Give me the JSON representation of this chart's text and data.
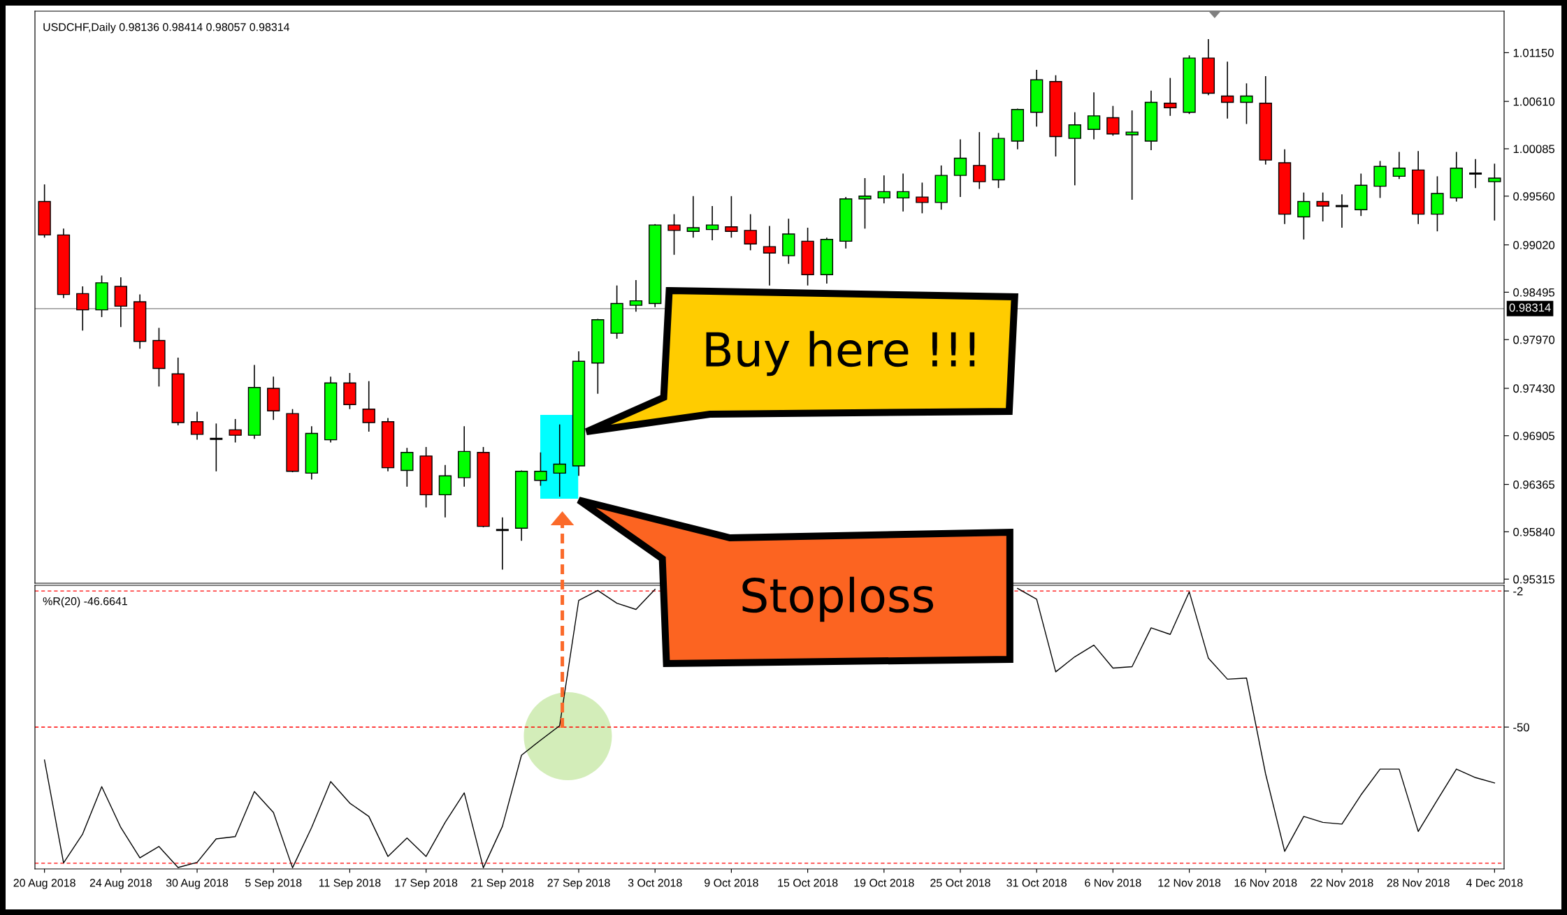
{
  "chart_data": [
    {
      "type": "candlestick",
      "title": "USDCHF,Daily 0.98136 0.98414 0.98057 0.98314",
      "categories": [
        null,
        null,
        null,
        null,
        null,
        null,
        null,
        null,
        null,
        null,
        null,
        null,
        null,
        null,
        null,
        null,
        null,
        null,
        null,
        null,
        null,
        null,
        null,
        null,
        null,
        null,
        null,
        null,
        null,
        null,
        null,
        null,
        null,
        null,
        null,
        null,
        null,
        null,
        null,
        null,
        null,
        null,
        null,
        null,
        null,
        null,
        null,
        null,
        null,
        null,
        null,
        null,
        null,
        null,
        null,
        null,
        null,
        null,
        null,
        null,
        null,
        null,
        null,
        null,
        null,
        null,
        null,
        null,
        null,
        null,
        null,
        null,
        null,
        null,
        null,
        null,
        null
      ],
      "ohlc": [
        [
          0.995,
          0.9969,
          0.991,
          0.9913
        ],
        [
          0.9913,
          0.992,
          0.9843,
          0.9847
        ],
        [
          0.9848,
          0.9856,
          0.9807,
          0.983
        ],
        [
          0.983,
          0.9868,
          0.9822,
          0.986
        ],
        [
          0.9856,
          0.9866,
          0.9811,
          0.9834
        ],
        [
          0.9839,
          0.9847,
          0.9787,
          0.9795
        ],
        [
          0.9796,
          0.981,
          0.9745,
          0.9765
        ],
        [
          0.9759,
          0.9777,
          0.9702,
          0.9705
        ],
        [
          0.9706,
          0.9717,
          0.9686,
          0.9692
        ],
        [
          0.9687,
          0.9704,
          0.9651,
          0.9687
        ],
        [
          0.9697,
          0.9709,
          0.9683,
          0.9691
        ],
        [
          0.9691,
          0.9769,
          0.9687,
          0.9744
        ],
        [
          0.9743,
          0.9756,
          0.9708,
          0.9718
        ],
        [
          0.9715,
          0.972,
          0.965,
          0.9651
        ],
        [
          0.9649,
          0.9701,
          0.9642,
          0.9693
        ],
        [
          0.9686,
          0.9756,
          0.9683,
          0.9749
        ],
        [
          0.9749,
          0.976,
          0.972,
          0.9725
        ],
        [
          0.972,
          0.9751,
          0.9695,
          0.9705
        ],
        [
          0.9706,
          0.971,
          0.9651,
          0.9655
        ],
        [
          0.9652,
          0.9677,
          0.9634,
          0.9672
        ],
        [
          0.9668,
          0.9678,
          0.9611,
          0.9625
        ],
        [
          0.9625,
          0.9658,
          0.96,
          0.9646
        ],
        [
          0.9644,
          0.9701,
          0.9634,
          0.9673
        ],
        [
          0.9672,
          0.9678,
          0.9589,
          0.959
        ],
        [
          0.9586,
          0.96,
          0.9542,
          0.9586
        ],
        [
          0.9588,
          0.9652,
          0.9574,
          0.9651
        ],
        [
          0.9641,
          0.9672,
          0.9635,
          0.9651
        ],
        [
          0.9649,
          0.9703,
          0.9623,
          0.9659
        ],
        [
          0.9657,
          0.9784,
          0.9646,
          0.9773
        ],
        [
          0.9771,
          0.982,
          0.9737,
          0.9819
        ],
        [
          0.9804,
          0.9857,
          0.9798,
          0.9837
        ],
        [
          0.9835,
          0.9863,
          0.9828,
          0.984
        ],
        [
          0.9837,
          0.9925,
          0.9833,
          0.9924
        ],
        [
          0.9924,
          0.9936,
          0.9891,
          0.9918
        ],
        [
          0.9917,
          0.9956,
          0.991,
          0.9921
        ],
        [
          0.9919,
          0.9945,
          0.9907,
          0.9924
        ],
        [
          0.9922,
          0.9956,
          0.991,
          0.9917
        ],
        [
          0.9918,
          0.9936,
          0.9896,
          0.9903
        ],
        [
          0.99,
          0.9923,
          0.9857,
          0.9893
        ],
        [
          0.989,
          0.9931,
          0.9881,
          0.9914
        ],
        [
          0.9906,
          0.9921,
          0.9857,
          0.9869
        ],
        [
          0.9869,
          0.991,
          0.9859,
          0.9908
        ],
        [
          0.9906,
          0.9955,
          0.9898,
          0.9953
        ],
        [
          0.9953,
          0.9976,
          0.992,
          0.9956
        ],
        [
          0.9954,
          0.9979,
          0.9948,
          0.9961
        ],
        [
          0.9954,
          0.9981,
          0.9939,
          0.9961
        ],
        [
          0.9955,
          0.9971,
          0.9937,
          0.9949
        ],
        [
          0.9949,
          0.999,
          0.9941,
          0.9979
        ],
        [
          0.9979,
          1.0019,
          0.9955,
          0.9998
        ],
        [
          0.999,
          1.0027,
          0.9964,
          0.9972
        ],
        [
          0.9974,
          1.0026,
          0.9965,
          1.002
        ],
        [
          1.0017,
          1.0053,
          1.0008,
          1.0052
        ],
        [
          1.0049,
          1.0096,
          1.0033,
          1.0085
        ],
        [
          1.0083,
          1.009,
          1.0,
          1.0022
        ],
        [
          1.002,
          1.0049,
          0.9968,
          1.0035
        ],
        [
          1.003,
          1.0071,
          1.0019,
          1.0045
        ],
        [
          1.0043,
          1.0056,
          1.0023,
          1.0025
        ],
        [
          1.0024,
          1.0051,
          0.9952,
          1.0027
        ],
        [
          1.0017,
          1.0073,
          1.0007,
          1.006
        ],
        [
          1.0059,
          1.0087,
          1.0045,
          1.0054
        ],
        [
          1.0049,
          1.0112,
          1.0047,
          1.0109
        ],
        [
          1.0109,
          1.013,
          1.0068,
          1.007
        ],
        [
          1.0067,
          1.0105,
          1.0042,
          1.006
        ],
        [
          1.006,
          1.0081,
          1.0036,
          1.0067
        ],
        [
          1.0059,
          1.0089,
          0.9991,
          0.9996
        ],
        [
          0.9993,
          1.0008,
          0.9925,
          0.9936
        ],
        [
          0.9933,
          0.996,
          0.9908,
          0.995
        ],
        [
          0.995,
          0.996,
          0.9928,
          0.9945
        ],
        [
          0.9945,
          0.9958,
          0.9921,
          0.9945
        ],
        [
          0.9941,
          0.9981,
          0.9934,
          0.9968
        ],
        [
          0.9967,
          0.9995,
          0.9954,
          0.9989
        ],
        [
          0.9978,
          1.0005,
          0.9975,
          0.9987
        ],
        [
          0.9985,
          1.0006,
          0.9925,
          0.9936
        ],
        [
          0.9936,
          0.9978,
          0.9917,
          0.9959
        ],
        [
          0.9954,
          1.0005,
          0.995,
          0.9987
        ],
        [
          0.9981,
          0.9997,
          0.9965,
          0.9981
        ],
        [
          0.9972,
          0.9992,
          0.9929,
          0.9976
        ]
      ],
      "colors": [
        "#ff0000",
        "#ff0000",
        "#ff0000",
        "#00ff00",
        "#ff0000",
        "#ff0000",
        "#ff0000",
        "#ff0000",
        "#ff0000",
        "#000000",
        "#ff0000",
        "#00ff00",
        "#ff0000",
        "#ff0000",
        "#00ff00",
        "#00ff00",
        "#ff0000",
        "#ff0000",
        "#ff0000",
        "#00ff00",
        "#ff0000",
        "#00ff00",
        "#00ff00",
        "#ff0000",
        "#000000",
        "#00ff00",
        "#00ff00",
        "#00ff00",
        "#00ff00",
        "#00ff00",
        "#00ff00",
        "#00ff00",
        "#00ff00",
        "#ff0000",
        "#00ff00",
        "#00ff00",
        "#ff0000",
        "#ff0000",
        "#ff0000",
        "#00ff00",
        "#ff0000",
        "#00ff00",
        "#00ff00",
        "#00ff00",
        "#00ff00",
        "#00ff00",
        "#ff0000",
        "#00ff00",
        "#00ff00",
        "#ff0000",
        "#00ff00",
        "#00ff00",
        "#00ff00",
        "#ff0000",
        "#00ff00",
        "#00ff00",
        "#ff0000",
        "#00ff00",
        "#00ff00",
        "#ff0000",
        "#00ff00",
        "#ff0000",
        "#ff0000",
        "#00ff00",
        "#ff0000",
        "#ff0000",
        "#00ff00",
        "#ff0000",
        "#000000",
        "#00ff00",
        "#00ff00",
        "#00ff00",
        "#ff0000",
        "#00ff00",
        "#00ff00",
        "#000000",
        "#00ff00"
      ],
      "ylim": [
        0.9527,
        1.0161
      ],
      "yticks": [
        {
          "value": 1.0115,
          "label": "1.01150"
        },
        {
          "value": 1.0061,
          "label": "1.00610"
        },
        1.00085,
        {
          "value": 0.9956,
          "label": "0.99560"
        },
        {
          "value": 0.9902,
          "label": "0.99020"
        },
        0.98495,
        {
          "value": 0.9797,
          "label": "0.97970"
        },
        {
          "value": 0.9743,
          "label": "0.97430"
        },
        0.96905,
        0.96365,
        {
          "value": 0.9584,
          "label": "0.95840"
        },
        0.95315
      ],
      "tick_labels": "y",
      "ref_lines": [
        {
          "axis": "y",
          "value": 0.98314,
          "label": "0.98314",
          "color": "#808080"
        }
      ],
      "annotations": [
        "Buy here !!!",
        "Stoploss"
      ]
    },
    {
      "type": "line",
      "title": "%R(20) -46.6641",
      "categories": [
        "20 Aug 2018",
        null,
        null,
        null,
        "24 Aug 2018",
        null,
        null,
        null,
        "30 Aug 2018",
        null,
        null,
        null,
        "5 Sep 2018",
        null,
        null,
        null,
        "11 Sep 2018",
        null,
        null,
        null,
        "17 Sep 2018",
        null,
        null,
        null,
        "21 Sep 2018",
        null,
        null,
        null,
        "27 Sep 2018",
        null,
        null,
        null,
        "3 Oct 2018",
        null,
        null,
        null,
        "9 Oct 2018",
        null,
        null,
        null,
        "15 Oct 2018",
        null,
        null,
        null,
        "19 Oct 2018",
        null,
        null,
        null,
        "25 Oct 2018",
        null,
        null,
        null,
        "31 Oct 2018",
        null,
        null,
        null,
        "6 Nov 2018",
        null,
        null,
        null,
        "12 Nov 2018",
        null,
        null,
        null,
        "16 Nov 2018",
        null,
        null,
        null,
        "22 Nov 2018",
        null,
        null,
        null,
        "28 Nov 2018",
        null,
        null,
        null,
        "4 Dec 2018"
      ],
      "series": [
        {
          "color": "#000000",
          "values": [
            -61.6,
            -97.9,
            -87.7,
            -71.0,
            -85.4,
            -96.1,
            -92.1,
            -99.5,
            -97.7,
            -89.4,
            -88.6,
            -72.7,
            -80.1,
            -99.6,
            -85.4,
            -69.2,
            -76.8,
            -81.5,
            -95.6,
            -89.1,
            -95.6,
            -83.6,
            -73.2,
            -99.6,
            -85.0,
            -59.9,
            -54.6,
            -49.5,
            -5.3,
            -1.8,
            -6.3,
            -8.5,
            -1.4,
            null,
            null,
            null,
            null,
            null,
            null,
            null,
            null,
            null,
            null,
            null,
            null,
            null,
            null,
            null,
            null,
            null,
            null,
            -1.1,
            -4.9,
            -30.5,
            -25.2,
            -21.1,
            -29.2,
            -28.7,
            -15.0,
            -17.3,
            -2.3,
            -25.7,
            -33.1,
            -32.7,
            -66.5,
            -93.8,
            -81.5,
            -83.6,
            -84.2,
            -73.9,
            -64.8,
            -64.8,
            -86.8,
            -75.7,
            -64.8,
            -67.8,
            -69.7
          ]
        }
      ],
      "ylim": [
        -100,
        0
      ],
      "yticks": [
        -2,
        -50
      ],
      "ref_lines": [
        {
          "axis": "y",
          "value": -2,
          "color": "#ff0000",
          "line_style": "dashed"
        },
        {
          "axis": "y",
          "value": -50,
          "color": "#ff0000",
          "line_style": "dashed"
        },
        {
          "axis": "y",
          "value": -98,
          "color": "#ff0000",
          "line_style": "dashed"
        }
      ]
    }
  ]
}
